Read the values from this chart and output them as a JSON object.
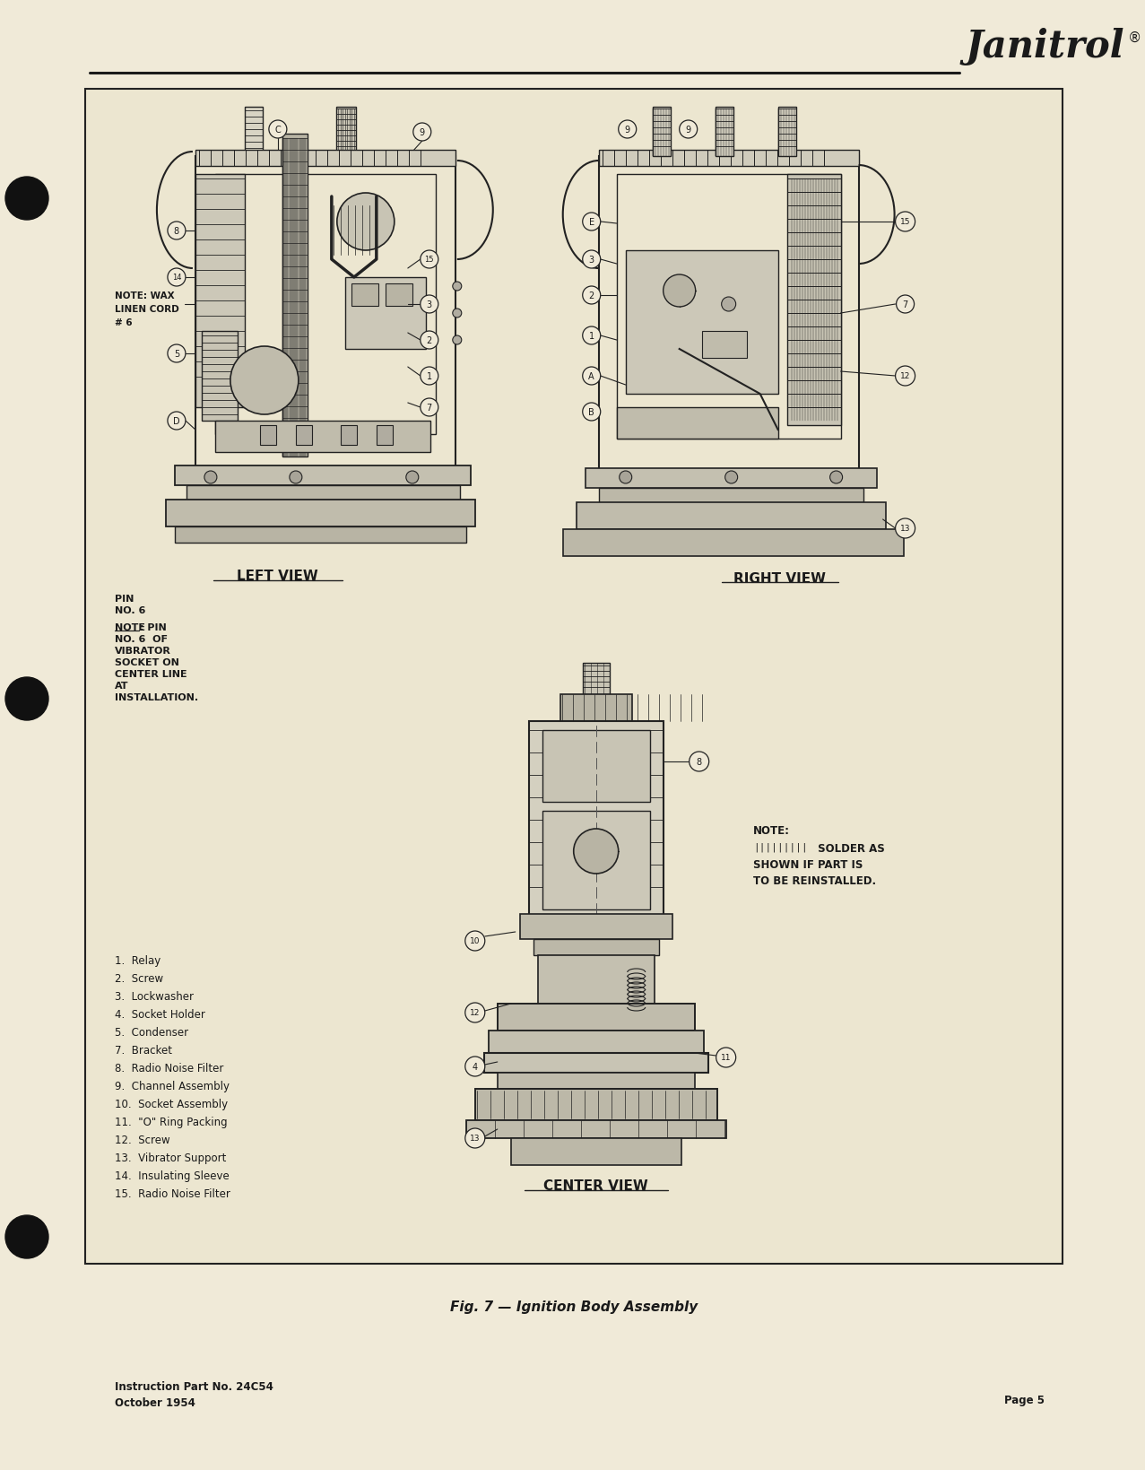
{
  "bg_color": "#f0ead8",
  "box_bg": "#ece6d0",
  "text_color": "#1a1a1a",
  "line_color": "#1a1a1a",
  "draw_color": "#222222",
  "title_janitrol": "Janitrol",
  "fig_caption": "Fig. 7 — Ignition Body Assembly",
  "footer_left_line1": "Instruction Part No. 24C54",
  "footer_left_line2": "October 1954",
  "footer_right": "Page 5",
  "left_view_label": "LEFT VIEW",
  "right_view_label": "RIGHT VIEW",
  "center_view_label": "CENTER VIEW",
  "note_wax_line1": "NOTE: WAX",
  "note_wax_line2": "LINEN CORD",
  "note_wax_line3": "# 6",
  "note_pin_line1": "PIN",
  "note_pin_line2": "NO. 6",
  "note_pin_detail_line1": "NOTE: PIN",
  "note_pin_detail_line2": "NO. 6  OF",
  "note_pin_detail_line3": "VIBRATOR",
  "note_pin_detail_line4": "SOCKET ON",
  "note_pin_detail_line5": "CENTER LINE",
  "note_pin_detail_line6": "AT",
  "note_pin_detail_line7": "INSTALLATION.",
  "note_solder_line1": "NOTE:",
  "note_solder_line2": "SOLDER AS",
  "note_solder_line3": "SHOWN IF PART IS",
  "note_solder_line4": "TO BE REINSTALLED.",
  "legend_items": [
    "1.  Relay",
    "2.  Screw",
    "3.  Lockwasher",
    "4.  Socket Holder",
    "5.  Condenser",
    "7.  Bracket",
    "8.  Radio Noise Filter",
    "9.  Channel Assembly",
    "10.  Socket Assembly",
    "11.  \"O\" Ring Packing",
    "12.  Screw",
    "13.  Vibrator Support",
    "14.  Insulating Sleeve",
    "15.  Radio Noise Filter"
  ]
}
